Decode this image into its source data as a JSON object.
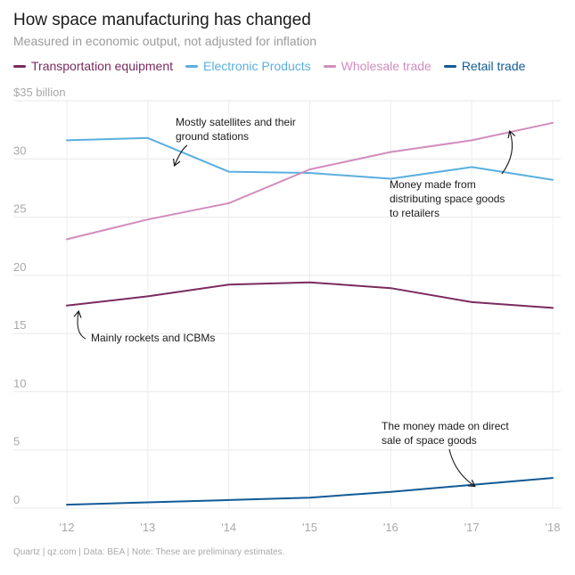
{
  "chart_data": {
    "type": "line",
    "title": "How space manufacturing has changed",
    "subtitle": "Measured in economic output, not adjusted for inflation",
    "x": [
      "'12",
      "'13",
      "'14",
      "'15",
      "'16",
      "'17",
      "'18"
    ],
    "ylim": [
      0,
      35
    ],
    "yticks": [
      0,
      5,
      10,
      15,
      20,
      25,
      30,
      35
    ],
    "ytick_labels": [
      "0",
      "5",
      "10",
      "15",
      "20",
      "25",
      "30",
      "$35 billion"
    ],
    "grid": true,
    "legend_position": "top",
    "series": [
      {
        "name": "Transportation equipment",
        "color": "#7b2b5e",
        "values": [
          17.4,
          18.2,
          19.2,
          19.4,
          18.9,
          17.7,
          17.2
        ]
      },
      {
        "name": "Electronic Products",
        "color": "#5aafe0",
        "values": [
          31.6,
          31.8,
          28.9,
          28.8,
          28.3,
          29.3,
          28.2
        ]
      },
      {
        "name": "Wholesale trade",
        "color": "#d18dbd",
        "values": [
          23.1,
          24.8,
          26.2,
          29.1,
          30.6,
          31.6,
          33.1
        ]
      },
      {
        "name": "Retail trade",
        "color": "#115a96",
        "values": [
          0.3,
          0.5,
          0.7,
          0.9,
          1.4,
          2.0,
          2.6
        ]
      }
    ],
    "annotations": [
      {
        "lines": [
          "Mostly satellites and their",
          "ground stations"
        ]
      },
      {
        "lines": [
          "Money made from",
          "distributing space goods",
          "to retailers"
        ]
      },
      {
        "lines": [
          "Mainly rockets and ICBMs"
        ]
      },
      {
        "lines": [
          "The money made on direct",
          "sale of space goods"
        ]
      }
    ]
  },
  "footer": "Quartz | qz.com | Data: BEA | Note: These are preliminary estimates."
}
